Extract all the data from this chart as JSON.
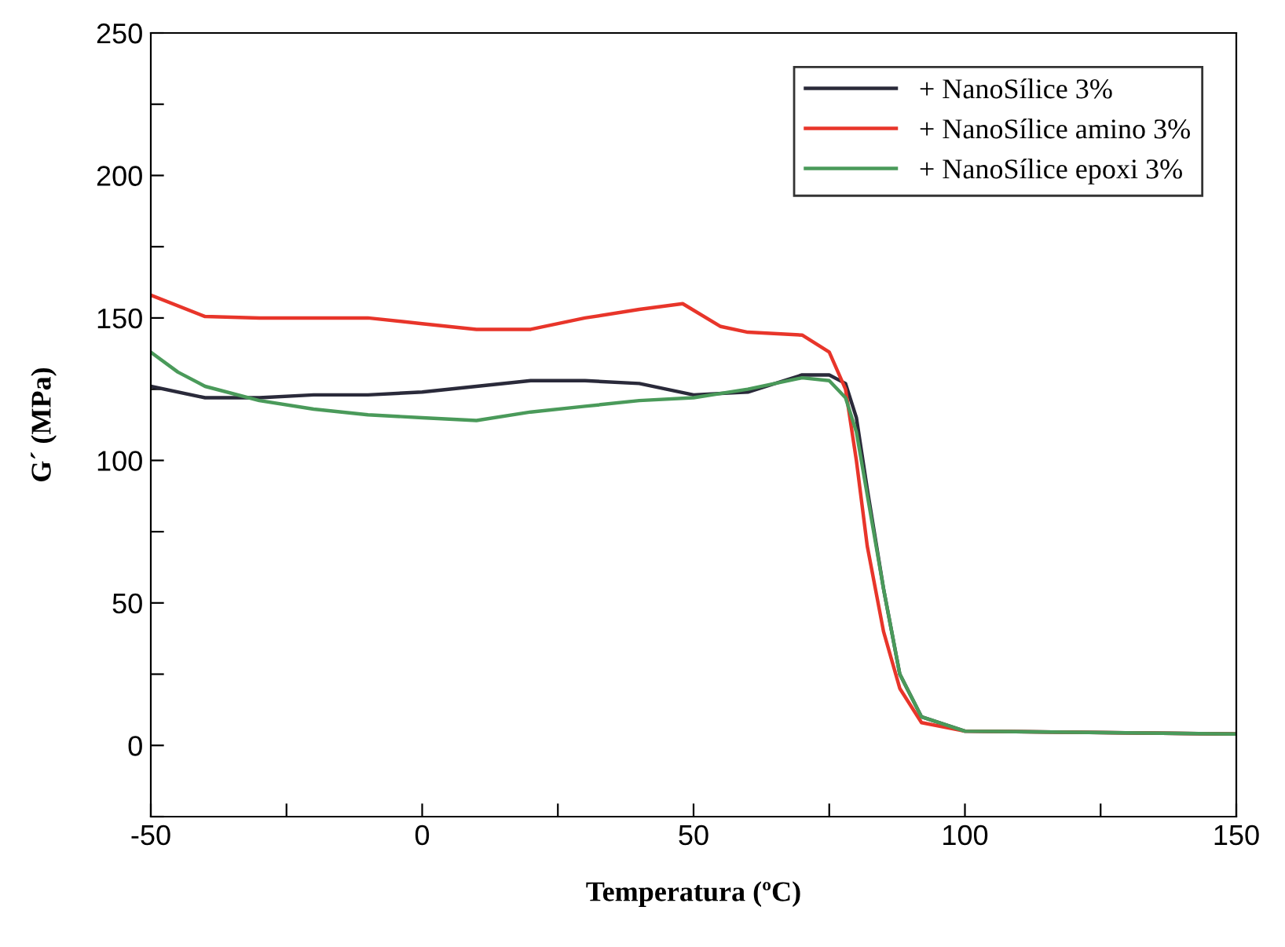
{
  "chart_data": {
    "type": "line",
    "xlabel": "Temperatura (ºC)",
    "ylabel": "G´ (MPa)",
    "xlim": [
      -50,
      150
    ],
    "ylim": [
      -25,
      250
    ],
    "xticks": [
      -50,
      {
        "value": -25,
        "label": null
      },
      0,
      {
        "value": 25,
        "label": null
      },
      50,
      {
        "value": 75,
        "label": null
      },
      100,
      {
        "value": 125,
        "label": null
      },
      150
    ],
    "yticks": [
      {
        "value": -25,
        "label": null
      },
      0,
      {
        "value": 25,
        "label": null
      },
      50,
      {
        "value": 75,
        "label": null
      },
      100,
      {
        "value": 125,
        "label": null
      },
      150,
      {
        "value": 175,
        "label": null
      },
      200,
      {
        "value": 225,
        "label": null
      },
      250
    ],
    "grid": false,
    "legend": "top right",
    "line_style": "solid",
    "marker": "none",
    "series": [
      {
        "name": "+ NanoSílice 3%",
        "color": "#2a2a3a",
        "x": [
          -50,
          -40,
          -30,
          -20,
          -10,
          0,
          10,
          20,
          30,
          40,
          50,
          60,
          70,
          75,
          78,
          80,
          82,
          85,
          88,
          92,
          100,
          150
        ],
        "values": [
          126,
          122,
          122,
          123,
          123,
          124,
          126,
          128,
          128,
          127,
          123,
          124,
          130,
          130,
          127,
          115,
          90,
          55,
          25,
          10,
          5,
          4
        ]
      },
      {
        "name": "+ NanoSílice amino 3%",
        "color": "#e8352a",
        "x": [
          -50,
          -40,
          -30,
          -20,
          -10,
          0,
          10,
          20,
          30,
          40,
          48,
          55,
          60,
          70,
          75,
          78,
          80,
          82,
          85,
          88,
          92,
          100,
          150
        ],
        "values": [
          158,
          150.5,
          150,
          150,
          150,
          148,
          146,
          146,
          150,
          153,
          155,
          147,
          145,
          144,
          138,
          125,
          100,
          70,
          40,
          20,
          8,
          5,
          4
        ]
      },
      {
        "name": "+ NanoSílice epoxi 3%",
        "color": "#4a9a5a",
        "x": [
          -50,
          -45,
          -40,
          -30,
          -20,
          -10,
          0,
          10,
          20,
          30,
          40,
          50,
          60,
          70,
          75,
          78,
          80,
          82,
          85,
          88,
          92,
          100,
          150
        ],
        "values": [
          138,
          131,
          126,
          121,
          118,
          116,
          115,
          114,
          117,
          119,
          121,
          122,
          125,
          129,
          128,
          122,
          110,
          88,
          55,
          25,
          10,
          5,
          4
        ]
      }
    ]
  }
}
